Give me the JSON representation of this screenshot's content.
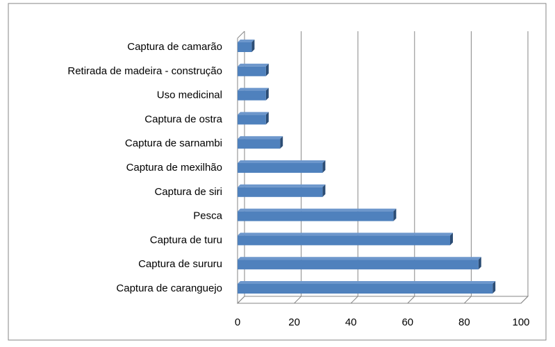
{
  "chart_data": {
    "type": "bar",
    "orientation": "horizontal",
    "categories": [
      "Captura de camarão",
      "Retirada de madeira - construção",
      "Uso medicinal",
      "Captura de ostra",
      "Captura de sarnambi",
      "Captura de mexilhão",
      "Captura de siri",
      "Pesca",
      "Captura de turu",
      "Captura de sururu",
      "Captura de caranguejo"
    ],
    "values": [
      5,
      10,
      10,
      10,
      15,
      30,
      30,
      55,
      75,
      85,
      90
    ],
    "color": "#4f81bd",
    "xlim": [
      0,
      100
    ],
    "xticks": [
      0,
      20,
      40,
      60,
      80,
      100
    ],
    "grid": true
  }
}
